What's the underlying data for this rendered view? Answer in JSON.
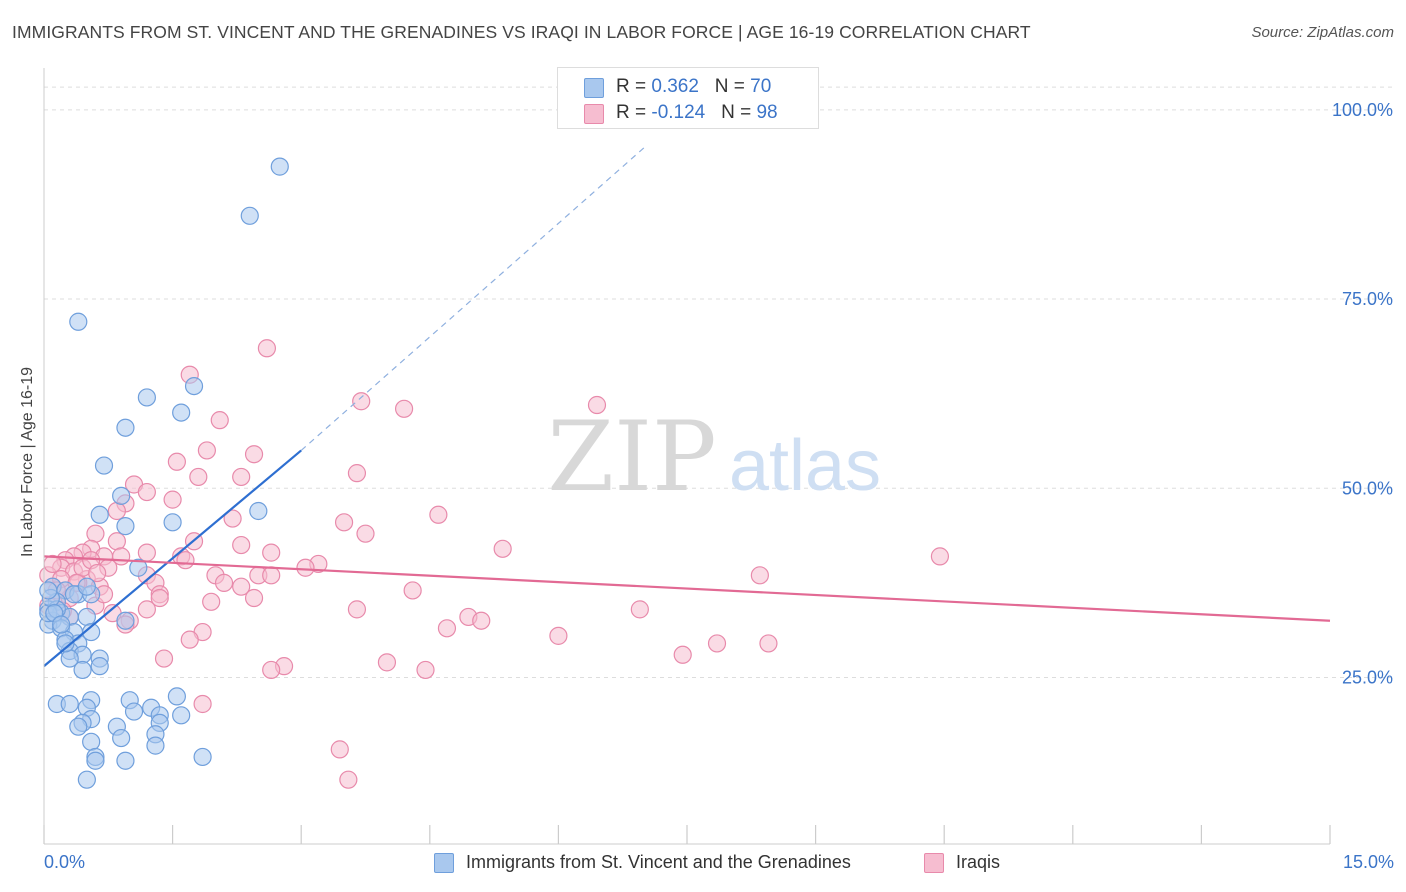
{
  "title": "IMMIGRANTS FROM ST. VINCENT AND THE GRENADINES VS IRAQI IN LABOR FORCE | AGE 16-19 CORRELATION CHART",
  "source": "Source: ZipAtlas.com",
  "watermark": {
    "zip": "ZIP",
    "atlas": "atlas"
  },
  "colors": {
    "blue_fill": "#a9c8ee",
    "blue_stroke": "#6f9fdc",
    "blue_line": "#2e6fd1",
    "pink_fill": "#f6bdd0",
    "pink_stroke": "#e88aab",
    "pink_line": "#e26a94",
    "axis_text": "#3b74c8",
    "grid": "#dddddd"
  },
  "legend_top": [
    {
      "r_label": "R = ",
      "r_value": "0.362",
      "n_label": "N = ",
      "n_value": "70"
    },
    {
      "r_label": "R = ",
      "r_value": "-0.124",
      "n_label": "N = ",
      "n_value": "98"
    }
  ],
  "chart_data": {
    "type": "scatter",
    "ylabel": "In Labor Force | Age 16-19",
    "xlim": [
      0,
      15
    ],
    "ylim": [
      3,
      105
    ],
    "x_ticks": [
      "0.0%",
      "15.0%"
    ],
    "y_ticks": [
      {
        "value": 25,
        "label": "25.0%"
      },
      {
        "value": 50,
        "label": "50.0%"
      },
      {
        "value": 75,
        "label": "75.0%"
      },
      {
        "value": 100,
        "label": "100.0%"
      }
    ],
    "grid": true,
    "legend_position": "bottom",
    "series": [
      {
        "name": "Immigrants from St. Vincent and the Grenadines",
        "trend": {
          "x0": 0,
          "y0": 26.5,
          "x1": 3.0,
          "y1": 55.0,
          "dashed_to_x": 7.0,
          "dashed_to_y": 95.0
        },
        "points": [
          [
            2.75,
            92.5
          ],
          [
            2.4,
            86
          ],
          [
            0.4,
            72
          ],
          [
            1.75,
            63.5
          ],
          [
            1.2,
            62
          ],
          [
            1.6,
            60
          ],
          [
            0.95,
            58
          ],
          [
            0.7,
            53
          ],
          [
            0.9,
            49
          ],
          [
            2.5,
            47
          ],
          [
            0.65,
            46.5
          ],
          [
            0.95,
            45
          ],
          [
            1.5,
            45.5
          ],
          [
            1.1,
            39.5
          ],
          [
            0.1,
            37
          ],
          [
            0.25,
            36.5
          ],
          [
            0.4,
            36
          ],
          [
            0.55,
            36
          ],
          [
            0.15,
            35
          ],
          [
            0.05,
            34
          ],
          [
            0.2,
            33.5
          ],
          [
            0.3,
            33
          ],
          [
            0.1,
            32.5
          ],
          [
            0.5,
            33
          ],
          [
            0.95,
            32.5
          ],
          [
            0.05,
            32
          ],
          [
            0.2,
            31.5
          ],
          [
            0.35,
            31
          ],
          [
            0.55,
            31
          ],
          [
            0.25,
            30
          ],
          [
            0.4,
            29.5
          ],
          [
            0.3,
            28.5
          ],
          [
            0.45,
            28
          ],
          [
            0.3,
            27.5
          ],
          [
            0.65,
            27.5
          ],
          [
            0.45,
            26
          ],
          [
            0.65,
            26.5
          ],
          [
            1.55,
            22.5
          ],
          [
            0.15,
            21.5
          ],
          [
            0.3,
            21.5
          ],
          [
            0.55,
            22
          ],
          [
            0.5,
            21
          ],
          [
            1.0,
            22
          ],
          [
            1.25,
            21
          ],
          [
            1.05,
            20.5
          ],
          [
            1.35,
            20
          ],
          [
            1.6,
            20
          ],
          [
            0.55,
            19.5
          ],
          [
            0.45,
            19
          ],
          [
            0.4,
            18.5
          ],
          [
            0.85,
            18.5
          ],
          [
            1.35,
            19
          ],
          [
            0.9,
            17
          ],
          [
            1.3,
            17.5
          ],
          [
            0.55,
            16.5
          ],
          [
            1.3,
            16
          ],
          [
            0.6,
            14.5
          ],
          [
            0.95,
            14
          ],
          [
            0.6,
            14
          ],
          [
            1.85,
            14.5
          ],
          [
            0.5,
            11.5
          ],
          [
            0.05,
            33.5
          ],
          [
            0.15,
            34
          ],
          [
            0.08,
            35.5
          ],
          [
            0.35,
            36
          ],
          [
            0.12,
            33.5
          ],
          [
            0.25,
            29.5
          ],
          [
            0.05,
            36.5
          ],
          [
            0.5,
            37
          ],
          [
            0.2,
            32
          ]
        ]
      },
      {
        "name": "Iraqis",
        "trend": {
          "x0": 0,
          "y0": 41.0,
          "x1": 15,
          "y1": 32.5
        },
        "points": [
          [
            2.6,
            68.5
          ],
          [
            1.7,
            65
          ],
          [
            3.7,
            61.5
          ],
          [
            4.2,
            60.5
          ],
          [
            6.45,
            61
          ],
          [
            2.05,
            59
          ],
          [
            1.9,
            55
          ],
          [
            2.45,
            54.5
          ],
          [
            1.55,
            53.5
          ],
          [
            3.65,
            52
          ],
          [
            1.8,
            51.5
          ],
          [
            2.3,
            51.5
          ],
          [
            1.05,
            50.5
          ],
          [
            1.2,
            49.5
          ],
          [
            1.5,
            48.5
          ],
          [
            0.95,
            48
          ],
          [
            0.85,
            47
          ],
          [
            4.6,
            46.5
          ],
          [
            2.2,
            46
          ],
          [
            3.5,
            45.5
          ],
          [
            3.75,
            44
          ],
          [
            0.6,
            44
          ],
          [
            0.85,
            43
          ],
          [
            1.75,
            43
          ],
          [
            2.3,
            42.5
          ],
          [
            5.35,
            42
          ],
          [
            10.45,
            41
          ],
          [
            0.55,
            42
          ],
          [
            0.45,
            41.5
          ],
          [
            1.2,
            41.5
          ],
          [
            2.65,
            41.5
          ],
          [
            0.35,
            41
          ],
          [
            0.7,
            41
          ],
          [
            1.6,
            41
          ],
          [
            0.25,
            40.5
          ],
          [
            3.2,
            40
          ],
          [
            1.65,
            40.5
          ],
          [
            0.2,
            39.5
          ],
          [
            0.35,
            39
          ],
          [
            0.75,
            39.5
          ],
          [
            3.05,
            39.5
          ],
          [
            0.05,
            38.5
          ],
          [
            0.5,
            38
          ],
          [
            1.2,
            38.5
          ],
          [
            2.0,
            38.5
          ],
          [
            2.5,
            38.5
          ],
          [
            2.65,
            38.5
          ],
          [
            8.35,
            38.5
          ],
          [
            0.4,
            37.5
          ],
          [
            1.3,
            37.5
          ],
          [
            2.1,
            37.5
          ],
          [
            2.3,
            37
          ],
          [
            0.1,
            37
          ],
          [
            0.65,
            37
          ],
          [
            0.25,
            36.5
          ],
          [
            1.35,
            36
          ],
          [
            4.3,
            36.5
          ],
          [
            1.35,
            35.5
          ],
          [
            1.95,
            35
          ],
          [
            2.45,
            35.5
          ],
          [
            0.15,
            35
          ],
          [
            0.6,
            34.5
          ],
          [
            1.2,
            34
          ],
          [
            3.65,
            34
          ],
          [
            6.95,
            34
          ],
          [
            0.8,
            33.5
          ],
          [
            0.3,
            33
          ],
          [
            4.95,
            33
          ],
          [
            5.1,
            32.5
          ],
          [
            1.0,
            32.5
          ],
          [
            0.95,
            32
          ],
          [
            4.7,
            31.5
          ],
          [
            1.85,
            31
          ],
          [
            6.0,
            30.5
          ],
          [
            7.85,
            29.5
          ],
          [
            8.45,
            29.5
          ],
          [
            1.7,
            30
          ],
          [
            7.45,
            28
          ],
          [
            1.4,
            27.5
          ],
          [
            4.0,
            27
          ],
          [
            2.8,
            26.5
          ],
          [
            4.45,
            26
          ],
          [
            2.65,
            26
          ],
          [
            1.85,
            21.5
          ],
          [
            3.45,
            15.5
          ],
          [
            3.55,
            11.5
          ],
          [
            0.1,
            40
          ],
          [
            0.2,
            38
          ],
          [
            0.45,
            39.5
          ],
          [
            0.3,
            35.5
          ],
          [
            0.55,
            40.5
          ],
          [
            0.15,
            36.5
          ],
          [
            0.7,
            36
          ],
          [
            0.38,
            37.5
          ],
          [
            0.05,
            34.5
          ],
          [
            0.9,
            41
          ],
          [
            0.22,
            33.8
          ],
          [
            0.62,
            38.8
          ]
        ]
      }
    ]
  }
}
